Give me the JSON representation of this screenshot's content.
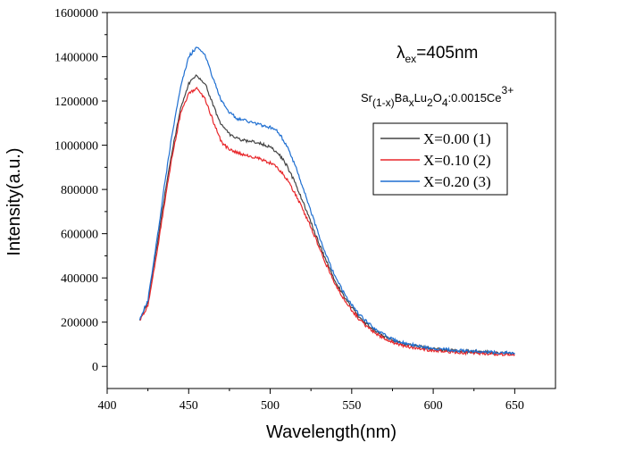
{
  "chart_data": {
    "type": "line",
    "xlabel": "Wavelength(nm)",
    "ylabel": "Intensity(a.u.)",
    "xlim": [
      400,
      675
    ],
    "ylim": [
      -100000,
      1600000
    ],
    "x_ticks": [
      400,
      450,
      500,
      550,
      600,
      650
    ],
    "y_ticks": [
      0,
      200000,
      400000,
      600000,
      800000,
      1000000,
      1200000,
      1400000,
      1600000
    ],
    "x_tick_labels": [
      "400",
      "450",
      "500",
      "550",
      "600",
      "650"
    ],
    "y_tick_labels": [
      "0",
      "200000",
      "400000",
      "600000",
      "800000",
      "1000000",
      "1200000",
      "1400000",
      "1600000"
    ],
    "grid": false,
    "legend_position": "upper-right",
    "annotations": {
      "excitation": {
        "symbol": "λ",
        "subscript": "ex",
        "value": "=405nm"
      },
      "formula": {
        "p1": "Sr",
        "s1": "(1-x)",
        "p2": "Ba",
        "s2": "x",
        "p3": "Lu",
        "s3": "2",
        "p4": "O",
        "s4": "4",
        "p5": ":0.0015Ce",
        "sup": "3+"
      }
    },
    "x": [
      420,
      425,
      430,
      435,
      440,
      445,
      450,
      455,
      460,
      465,
      470,
      475,
      480,
      485,
      490,
      495,
      500,
      505,
      510,
      515,
      520,
      525,
      530,
      535,
      540,
      545,
      550,
      555,
      560,
      565,
      570,
      575,
      580,
      590,
      600,
      610,
      620,
      630,
      640,
      650
    ],
    "series": [
      {
        "name": "X=0.00 (1)",
        "color": "#444444",
        "values": [
          210000,
          290000,
          520000,
          760000,
          980000,
          1160000,
          1280000,
          1315000,
          1280000,
          1180000,
          1090000,
          1050000,
          1030000,
          1020000,
          1015000,
          1005000,
          990000,
          965000,
          910000,
          835000,
          745000,
          650000,
          555000,
          465000,
          385000,
          320000,
          265000,
          220000,
          185000,
          158000,
          135000,
          118000,
          105000,
          90000,
          80000,
          72000,
          68000,
          64000,
          61000,
          58000
        ]
      },
      {
        "name": "X=0.10 (2)",
        "color": "#e8262a",
        "values": [
          205000,
          275000,
          490000,
          730000,
          955000,
          1140000,
          1235000,
          1255000,
          1210000,
          1110000,
          1015000,
          980000,
          965000,
          955000,
          945000,
          935000,
          920000,
          895000,
          850000,
          785000,
          710000,
          630000,
          540000,
          450000,
          370000,
          308000,
          255000,
          210000,
          175000,
          148000,
          126000,
          110000,
          97000,
          82000,
          72000,
          66000,
          62000,
          59000,
          56000,
          54000
        ]
      },
      {
        "name": "X=0.20 (3)",
        "color": "#1f6fd1",
        "values": [
          215000,
          300000,
          545000,
          810000,
          1060000,
          1260000,
          1400000,
          1445000,
          1410000,
          1300000,
          1200000,
          1150000,
          1120000,
          1110000,
          1100000,
          1090000,
          1080000,
          1060000,
          1000000,
          915000,
          810000,
          700000,
          590000,
          490000,
          405000,
          335000,
          280000,
          232000,
          195000,
          166000,
          142000,
          124000,
          110000,
          93000,
          82000,
          75000,
          70000,
          66000,
          63000,
          60000
        ]
      }
    ]
  }
}
